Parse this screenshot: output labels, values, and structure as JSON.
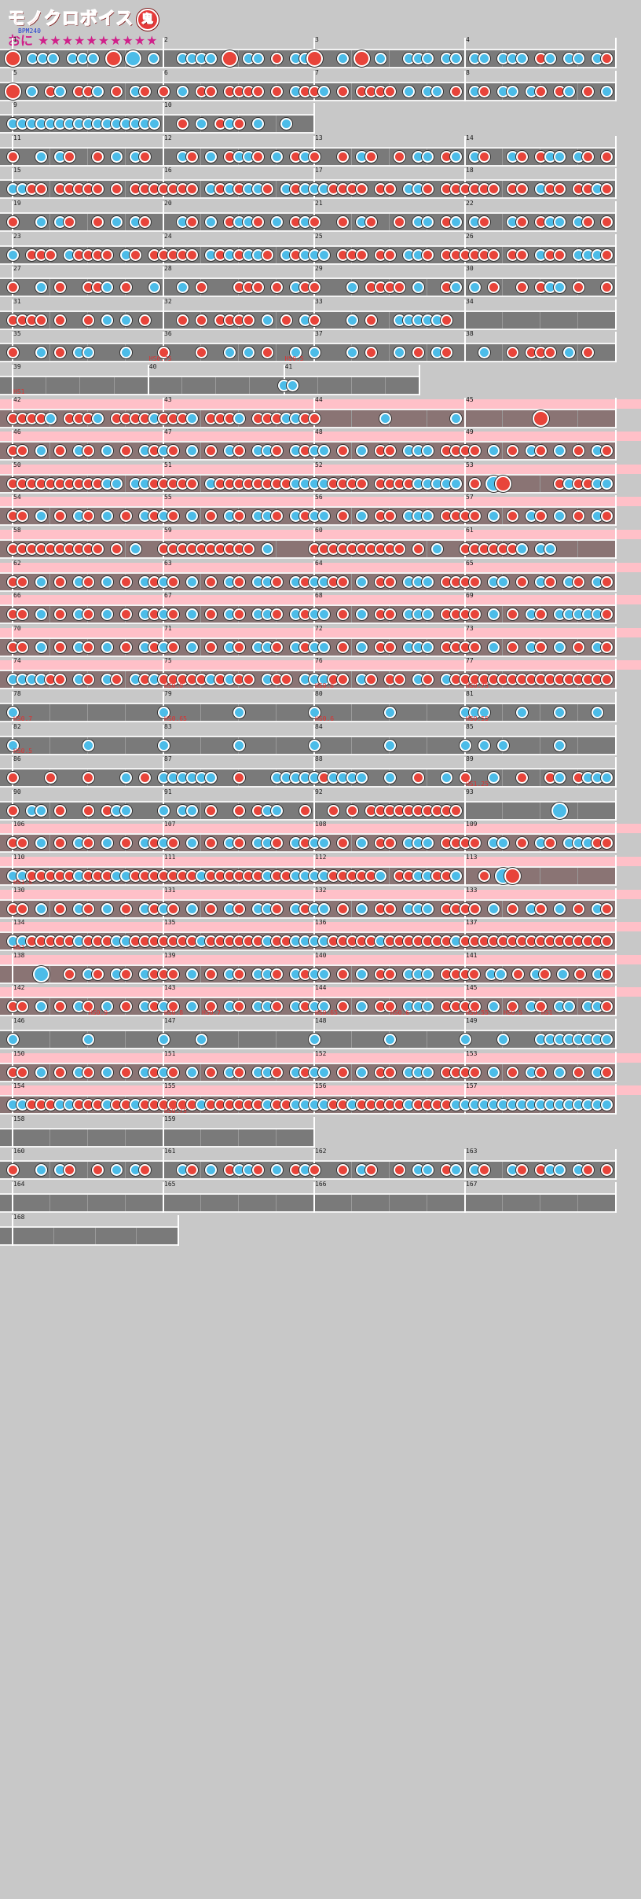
{
  "header": {
    "title": "モノクロボイス",
    "difficulty_mark": "鬼",
    "course": "おに",
    "stars": "★★★★★★★★★★"
  },
  "colors": {
    "don": "#e8443a",
    "ka": "#4cbce8",
    "gogo": "#ffc0c8",
    "lane": "#7a7a7a"
  },
  "bpm": "BPM240",
  "rows": [
    {
      "gogo": false,
      "measures": [
        {
          "n": "1",
          "notes": "D.kkk.kkk.D.K.k"
        },
        {
          "n": "2",
          "notes": "..kkkk.D.kk.d.kk"
        },
        {
          "n": "3",
          "notes": "D..k.D.k..kkk.kk"
        },
        {
          "n": "4",
          "notes": ".kk.kkk.dk.kk.kd"
        }
      ]
    },
    {
      "gogo": false,
      "measures": [
        {
          "n": "5",
          "notes": "D.k.dk.ddk.d.kd."
        },
        {
          "n": "6",
          "notes": "d.k.dd.dddd.d.kd"
        },
        {
          "n": "7",
          "notes": "dk.d.dddd.k.kk.d"
        },
        {
          "n": "8",
          "notes": ".kd.kk.kd.dk.d.k"
        }
      ]
    },
    {
      "gogo": false,
      "width": 2,
      "measures": [
        {
          "n": "9",
          "notes": "kkkkkkkkkkkkkkkk"
        },
        {
          "n": "10",
          "notes": "..d.k.dkd.k..k.."
        }
      ]
    },
    {
      "gogo": false,
      "measures": [
        {
          "n": "11",
          "notes": "d..k.kd..d.k.kd."
        },
        {
          "n": "12",
          "notes": "..kd.k.dkkd.k.dk"
        },
        {
          "n": "13",
          "notes": "d..d.kd..d.kk.dk"
        },
        {
          "n": "14",
          "notes": ".kd..kd.dkk.kd.d"
        }
      ]
    },
    {
      "gogo": false,
      "measures": [
        {
          "n": "15",
          "notes": "kkdd.ddddd.d.ddd"
        },
        {
          "n": "16",
          "notes": "dddd.kdkdkkd.kdk"
        },
        {
          "n": "17",
          "notes": "kkdddd.dd.kkd.dd"
        },
        {
          "n": "18",
          "notes": "dddd.dd.kdd.ddkd"
        }
      ]
    },
    {
      "gogo": false,
      "measures": [
        {
          "n": "19",
          "notes": "d..k.kd..d.k.kd."
        },
        {
          "n": "20",
          "notes": "..kd.k.dkkd.k.dk"
        },
        {
          "n": "21",
          "notes": "d..d.kd..d.kk.dk"
        },
        {
          "n": "22",
          "notes": ".kd..kd.dkk.kd.d"
        }
      ]
    },
    {
      "gogo": false,
      "measures": [
        {
          "n": "23",
          "notes": "k.ddd.kdddd.kd.d"
        },
        {
          "n": "24",
          "notes": "dddd.kdkdkkd.kdk"
        },
        {
          "n": "25",
          "notes": "kk.ddd.dd.kkd.dd"
        },
        {
          "n": "26",
          "notes": "dddd.dd.kdd.kkkd"
        }
      ]
    },
    {
      "gogo": false,
      "measures": [
        {
          "n": "27",
          "notes": "d..k.d..ddk.d..k"
        },
        {
          "n": "28",
          "notes": "..k.d...ddd.d.kd"
        },
        {
          "n": "29",
          "notes": "d...k.dddd.k..dk"
        },
        {
          "n": "30",
          "notes": ".k.d..d.dkk.d..d"
        }
      ]
    },
    {
      "gogo": false,
      "measures": [
        {
          "n": "31",
          "notes": "dddd.d..d.k.k.d."
        },
        {
          "n": "32",
          "notes": "..d.d.dddd.k.d.k"
        },
        {
          "n": "33",
          "notes": "d...k.d..kkkkkd."
        },
        {
          "n": "34",
          "notes": "................"
        }
      ]
    },
    {
      "gogo": false,
      "measures": [
        {
          "n": "35",
          "notes": "d..k.d.kk...k..."
        },
        {
          "n": "36",
          "notes": "d...d..k.k.d..k."
        },
        {
          "n": "37",
          "notes": "k...k.d..k.d.kd."
        },
        {
          "n": "38",
          "notes": "..k..d.ddd.k.d.."
        }
      ]
    },
    {
      "gogo": false,
      "width": 2.7,
      "labels": [
        {
          "m": 1,
          "text": "HS0.75"
        },
        {
          "m": 2,
          "text": "HS0.5"
        }
      ],
      "measures": [
        {
          "n": "39",
          "notes": "................"
        },
        {
          "n": "40",
          "notes": "................"
        },
        {
          "n": "41",
          "notes": "kk.............."
        }
      ]
    },
    {
      "gogo": true,
      "labels": [
        {
          "m": 0,
          "text": "HS1"
        }
      ],
      "measures": [
        {
          "n": "42",
          "notes": "ddddk.dddk.ddddk"
        },
        {
          "n": "43",
          "notes": "dddk.dddk.dddkkd"
        },
        {
          "n": "44",
          "notes": "d.......k.......k"
        },
        {
          "n": "45",
          "notes": "........D......."
        }
      ]
    },
    {
      "gogo": true,
      "measures": [
        {
          "n": "46",
          "notes": "dd.k.d.kd.k.d.kd"
        },
        {
          "n": "47",
          "notes": "kd.k.d.kd.kkd.kd"
        },
        {
          "n": "48",
          "notes": "kk.d.k.dd.kkk.dd"
        },
        {
          "n": "49",
          "notes": "dd.k.d.kd.k.d.kd"
        }
      ]
    },
    {
      "gogo": true,
      "measures": [
        {
          "n": "50",
          "notes": "ddddddddddkk.kkd"
        },
        {
          "n": "51",
          "notes": "dddd.kddddddddkk"
        },
        {
          "n": "52",
          "notes": "kkdddd.ddddkkkkk"
        },
        {
          "n": "53",
          "notes": ".d.KD.....dkddkk"
        }
      ]
    },
    {
      "gogo": true,
      "measures": [
        {
          "n": "54",
          "notes": "dd.k.d.kd.k.d.kd"
        },
        {
          "n": "55",
          "notes": "kd.k.d.kd.kkd.kd"
        },
        {
          "n": "56",
          "notes": "kk.d.k.dd.kkk.dd"
        },
        {
          "n": "57",
          "notes": "dd.k.d.kd.k.d.kd"
        }
      ]
    },
    {
      "gogo": true,
      "measures": [
        {
          "n": "58",
          "notes": "dddddddddd.d.k.."
        },
        {
          "n": "59",
          "notes": "dddddddddd.k...."
        },
        {
          "n": "60",
          "notes": "dddddddddd.d.k.."
        },
        {
          "n": "61",
          "notes": "ddddddk.kk......"
        }
      ]
    },
    {
      "gogo": true,
      "measures": [
        {
          "n": "62",
          "notes": "dd.k.d.kd.k.d.kd"
        },
        {
          "n": "63",
          "notes": "kd.k.d.kd.kkd.kd"
        },
        {
          "n": "64",
          "notes": "kkdd.k.dd.kkk.dd"
        },
        {
          "n": "65",
          "notes": "dd.kk.d.kd.kd.kd"
        }
      ]
    },
    {
      "gogo": true,
      "measures": [
        {
          "n": "66",
          "notes": "dd.k.d.kd.k.d.kd"
        },
        {
          "n": "67",
          "notes": "kd.k.d.kd.kkd.kd"
        },
        {
          "n": "68",
          "notes": "kk.d.k.dd.kkk.dd"
        },
        {
          "n": "69",
          "notes": "dd.k.d.kd.kkkkkd"
        }
      ]
    },
    {
      "gogo": true,
      "measures": [
        {
          "n": "70",
          "notes": "dd.k.d.kd.k.d.kd"
        },
        {
          "n": "71",
          "notes": "kd.k.d.kd.kkd.kd"
        },
        {
          "n": "72",
          "notes": "kk.d.k.dd.kkk.dd"
        },
        {
          "n": "73",
          "notes": "dd.k.d.kd.k.d.kd"
        }
      ]
    },
    {
      "gogo": true,
      "measures": [
        {
          "n": "74",
          "notes": "kkkkdd.kd.kd.kdk"
        },
        {
          "n": "75",
          "notes": "dddddkdkdd.kdd.k"
        },
        {
          "n": "76",
          "notes": "kkdd.kd.dd.kd.kd"
        },
        {
          "n": "77",
          "notes": "dddddddddddddddd"
        }
      ]
    },
    {
      "gogo": false,
      "labels": [
        {
          "m": 1,
          "text": "HS0.9"
        },
        {
          "m": 2,
          "text": "HS0.8"
        },
        {
          "m": 3,
          "text": "HS0.75"
        }
      ],
      "measures": [
        {
          "n": "78",
          "notes": "k..............."
        },
        {
          "n": "79",
          "notes": "k.......k......."
        },
        {
          "n": "80",
          "notes": "k.......k......."
        },
        {
          "n": "81",
          "notes": "kkk...k...k...k."
        }
      ]
    },
    {
      "gogo": false,
      "labels": [
        {
          "m": 0,
          "text": "HS0.7"
        },
        {
          "m": 1,
          "text": "HS0.65"
        },
        {
          "m": 2,
          "text": "HS0.6"
        },
        {
          "m": 3,
          "text": "HS0.55"
        }
      ],
      "measures": [
        {
          "n": "82",
          "notes": "k.......k......."
        },
        {
          "n": "83",
          "notes": "k.......k......."
        },
        {
          "n": "84",
          "notes": "k.......k......."
        },
        {
          "n": "85",
          "notes": "k.k.k.....k....."
        }
      ]
    },
    {
      "gogo": false,
      "labels": [
        {
          "m": 0,
          "text": "HS0.5"
        }
      ],
      "measures": [
        {
          "n": "86",
          "notes": "d...d...d...k.d."
        },
        {
          "n": "87",
          "notes": "kkkkkk..d...kkkk"
        },
        {
          "n": "88",
          "notes": "kdkkkk..k..d..k."
        },
        {
          "n": "89",
          "notes": "d..k..d..dk.dkkk"
        }
      ]
    },
    {
      "gogo": false,
      "labels": [
        {
          "m": 3,
          "text": "HS1.25"
        }
      ],
      "measures": [
        {
          "n": "90",
          "notes": "d.kk.d..d.dkk..."
        },
        {
          "n": "91",
          "notes": "k.kk.d..d.dkk..d"
        },
        {
          "n": "92",
          "notes": "..d.d.dddddddddd"
        },
        {
          "n": "93",
          "notes": "..........K....."
        }
      ]
    },
    {
      "gogo": true,
      "measures": [
        {
          "n": "106",
          "notes": "dd.k.d.kd.k.d.kd"
        },
        {
          "n": "107",
          "notes": "kd.k.d.kd.kkd.kd"
        },
        {
          "n": "108",
          "notes": "kk.d.k.dd.kkk.dd"
        },
        {
          "n": "109",
          "notes": "dd.kk.d.kd.kkkdd"
        }
      ]
    },
    {
      "gogo": true,
      "measures": [
        {
          "n": "110",
          "notes": "kkdddddkdddkkddd"
        },
        {
          "n": "111",
          "notes": "ddddkddddddkddkk"
        },
        {
          "n": "112",
          "notes": "kkdddddk.ddkkddk"
        },
        {
          "n": "113",
          "notes": "..d.KD.........."
        }
      ]
    },
    {
      "gogo": true,
      "labels": [
        {
          "m": 0,
          "text": "HS1.5"
        }
      ],
      "measures": [
        {
          "n": "130",
          "notes": "dd.k.d.kd.k.d.kd"
        },
        {
          "n": "131",
          "notes": "kd.k.d.kd.kkd.kd"
        },
        {
          "n": "132",
          "notes": "kk.d.k.dd.kkk.dd"
        },
        {
          "n": "133",
          "notes": "dd.k.d.kd.k.d.kd"
        }
      ]
    },
    {
      "gogo": true,
      "measures": [
        {
          "n": "134",
          "notes": "kkdddddkdddkkddd"
        },
        {
          "n": "135",
          "notes": "ddddkddddddkddkk"
        },
        {
          "n": "136",
          "notes": "kkdddddkdddddddk"
        },
        {
          "n": "137",
          "notes": "dddddddddddddddd"
        }
      ]
    },
    {
      "gogo": true,
      "labels": [
        {
          "m": 0,
          "text": "HS1"
        }
      ],
      "measures": [
        {
          "n": "138",
          "notes": "...K..d.kd.kd.kd"
        },
        {
          "n": "139",
          "notes": "dd.k.d.kd.kkd.kd"
        },
        {
          "n": "140",
          "notes": "kk.d.k.dd.kkk.dd"
        },
        {
          "n": "141",
          "notes": "dd.kk.d.kd.k.d.kd"
        }
      ]
    },
    {
      "gogo": true,
      "measures": [
        {
          "n": "142",
          "notes": "dd.k.d.kd.k.d.kd"
        },
        {
          "n": "143",
          "notes": "kd.k.d.kd.kkd.kd"
        },
        {
          "n": "144",
          "notes": "kk.d.k.dd.kkk.dd"
        },
        {
          "n": "145",
          "notes": "dd.k.d.kd.kk.kkd"
        }
      ]
    },
    {
      "gogo": false,
      "labels": [
        {
          "m": 0,
          "text": "HS0.9",
          "pos": 0.5
        },
        {
          "m": 1,
          "text": "HS0.8"
        },
        {
          "m": 1,
          "text": "HS0.7",
          "pos": 0.25
        },
        {
          "m": 2,
          "text": "HS0.65"
        },
        {
          "m": 2,
          "text": "HS0.6",
          "pos": 0.5
        },
        {
          "m": 3,
          "text": "HS0.55"
        },
        {
          "m": 3,
          "text": "HS0.5",
          "pos": 0.25
        },
        {
          "m": 3,
          "text": "HS1",
          "pos": 0.5
        }
      ],
      "measures": [
        {
          "n": "146",
          "notes": "k.......k......."
        },
        {
          "n": "147",
          "notes": "k...k..........."
        },
        {
          "n": "148",
          "notes": "k.......k......."
        },
        {
          "n": "149",
          "notes": "k...k...kkkkkkkk"
        }
      ]
    },
    {
      "gogo": true,
      "measures": [
        {
          "n": "150",
          "notes": "dd.k.d.kd.k.d.kd"
        },
        {
          "n": "151",
          "notes": "kd.k.d.kd.kkd.kd"
        },
        {
          "n": "152",
          "notes": "kk.d.k.dd.kkk.dd"
        },
        {
          "n": "153",
          "notes": "dd.k.d.kd.k.d.kd"
        }
      ]
    },
    {
      "gogo": true,
      "measures": [
        {
          "n": "154",
          "notes": "kkdddkkdddkddkdd"
        },
        {
          "n": "155",
          "notes": "ddddkddddddkddkk"
        },
        {
          "n": "156",
          "notes": "kkddkdddddkddddk"
        },
        {
          "n": "157",
          "notes": "kkkkkkkkkkkkkkkk"
        }
      ]
    },
    {
      "gogo": false,
      "width": 2,
      "labels": [
        {
          "m": 1,
          "text": "HS0.75"
        }
      ],
      "measures": [
        {
          "n": "158",
          "notes": "................"
        },
        {
          "n": "159",
          "notes": "................"
        }
      ]
    },
    {
      "gogo": false,
      "measures": [
        {
          "n": "160",
          "notes": "d..k.kd..d.k.kd."
        },
        {
          "n": "161",
          "notes": "..kd.k.dkkd.k.dk"
        },
        {
          "n": "162",
          "notes": "d..d.kd..d.kk.dk"
        },
        {
          "n": "163",
          "notes": ".kd..kd.dkk.kd.d"
        }
      ]
    },
    {
      "gogo": false,
      "measures": [
        {
          "n": "164",
          "notes": "................"
        },
        {
          "n": "165",
          "notes": "................"
        },
        {
          "n": "166",
          "notes": "................"
        },
        {
          "n": "167",
          "notes": "................"
        }
      ]
    },
    {
      "gogo": false,
      "width": 1.1,
      "measures": [
        {
          "n": "168",
          "notes": "................"
        }
      ]
    }
  ]
}
